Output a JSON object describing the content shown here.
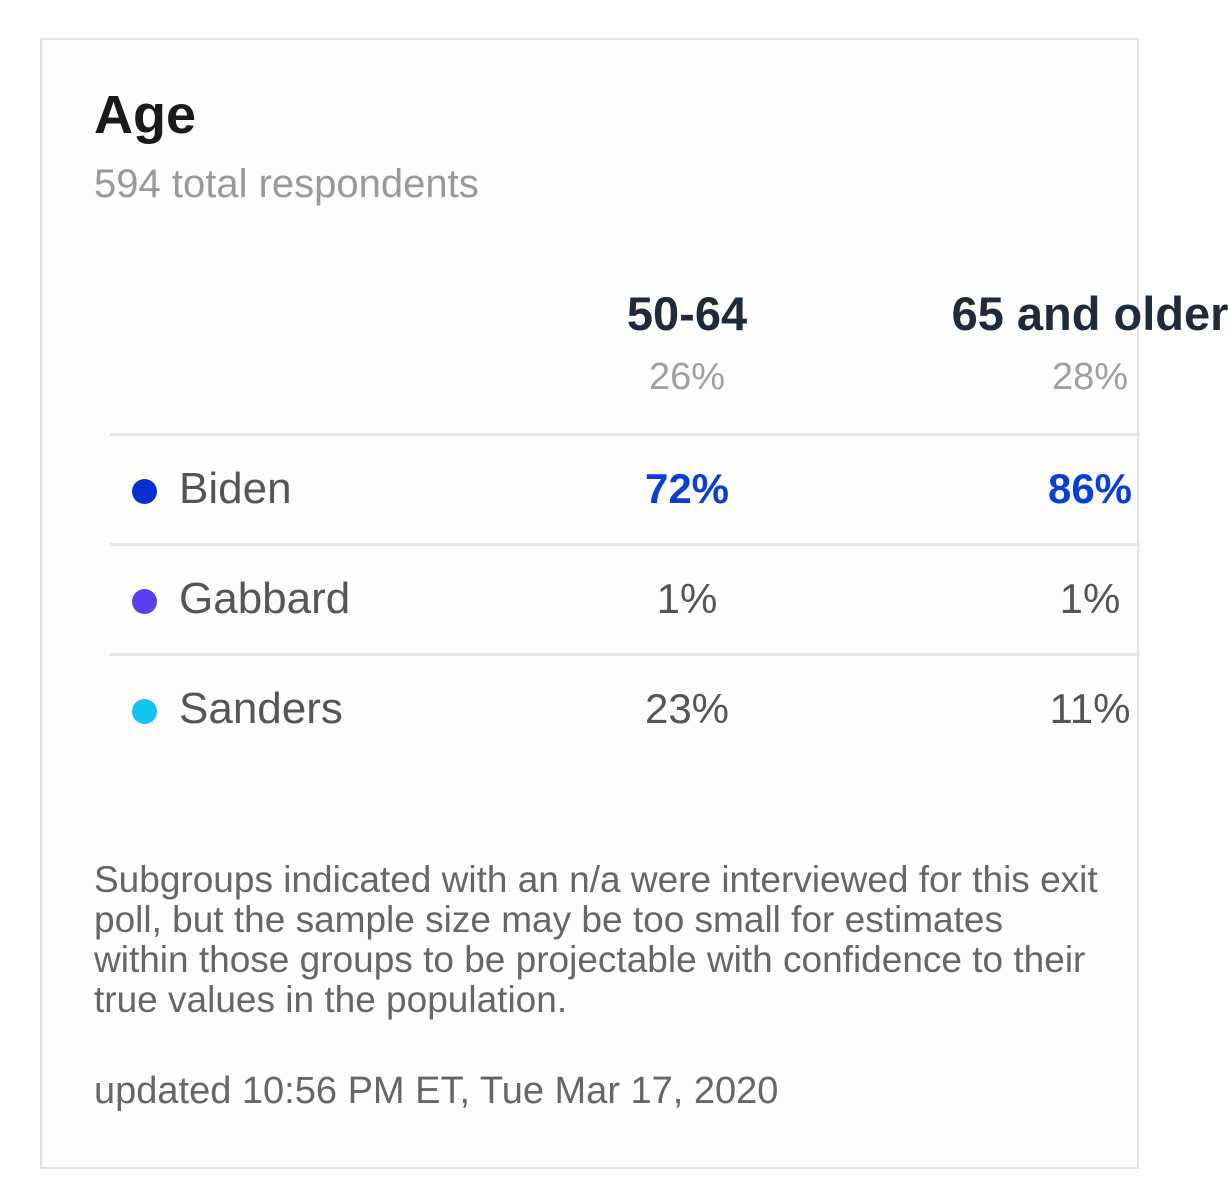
{
  "header": {
    "title": "Age",
    "subtitle": "594 total respondents"
  },
  "table": {
    "columns": [
      {
        "label": "50-64",
        "share": "26%"
      },
      {
        "label": "65 and older",
        "share": "28%"
      }
    ],
    "rows": [
      {
        "name": "Biden",
        "color": "#0a2fd0",
        "values": [
          "72%",
          "86%"
        ]
      },
      {
        "name": "Gabbard",
        "color": "#5a3ff0",
        "values": [
          "1%",
          "1%"
        ]
      },
      {
        "name": "Sanders",
        "color": "#12c4f0",
        "values": [
          "23%",
          "11%"
        ]
      }
    ]
  },
  "footnote": "Subgroups indicated with an n/a were interviewed for this exit poll, but the sample size may be too small for estimates within those groups to be projectable with confidence to their true values in the population.",
  "updated": "updated 10:56 PM ET, Tue Mar 17, 2020"
}
